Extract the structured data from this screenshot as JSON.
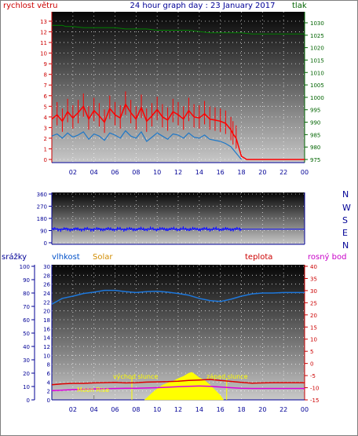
{
  "header": {
    "left_label": "rychlost větru",
    "title": "24 hour graph day : 23 January 2017",
    "right_label": "tlak"
  },
  "panel_labels": {
    "rain": "srážky",
    "humidity": "vlhkost",
    "solar": "Solar",
    "temperature": "teplota",
    "dewpoint": "rosný bod"
  },
  "compass_labels": [
    "N",
    "W",
    "S",
    "E",
    "N"
  ],
  "annotations": {
    "sunrise": "východ slunce",
    "sunset": "západ slunce",
    "moonrise": "Moon Rise"
  },
  "colors": {
    "wind_gust": "#ff0000",
    "wind_avg": "#1e78c8",
    "pressure": "#008000",
    "wind_dir": "#1414ff",
    "humidity": "#1e78dc",
    "temperature": "#dc0000",
    "dewpoint": "#dc00dc",
    "solar": "#ffff00",
    "axis_red": "#cc0000",
    "axis_green": "#006400",
    "axis_blue": "#0000c8",
    "axis_magenta": "#c800c8",
    "axis_navy": "#000096"
  },
  "chart_data": [
    {
      "type": "line",
      "name": "wind",
      "x_ticks": [
        "02",
        "04",
        "06",
        "08",
        "10",
        "12",
        "14",
        "16",
        "18",
        "20",
        "22",
        "00"
      ],
      "x_hours": [
        0,
        24
      ],
      "ylim_left": [
        0,
        13
      ],
      "y_ticks_left": [
        "0",
        "1",
        "2",
        "3",
        "4",
        "5",
        "6",
        "7",
        "8",
        "9",
        "10",
        "11",
        "12",
        "13"
      ],
      "ylim_right": [
        975,
        1030
      ],
      "y_ticks_right": [
        "975",
        "980",
        "985",
        "990",
        "995",
        "1000",
        "1005",
        "1010",
        "1015",
        "1020",
        "1025",
        "1030"
      ],
      "series": [
        {
          "key": "gust",
          "x": [
            0,
            0.5,
            1,
            1.5,
            2,
            2.5,
            3,
            3.5,
            4,
            4.5,
            5,
            5.5,
            6,
            6.5,
            7,
            7.5,
            8,
            8.5,
            9,
            9.5,
            10,
            10.5,
            11,
            11.5,
            12,
            12.5,
            13,
            13.5,
            14,
            14.5,
            15,
            15.5,
            16,
            16.5,
            17,
            17.2,
            17.5,
            18,
            18.5,
            19,
            20,
            21,
            22,
            23,
            24
          ],
          "values": [
            3.8,
            4.2,
            3.6,
            4.5,
            3.9,
            4.4,
            5.0,
            3.8,
            4.6,
            4.1,
            3.5,
            4.8,
            4.2,
            3.9,
            5.2,
            4.4,
            3.8,
            4.9,
            3.6,
            4.1,
            4.7,
            4.0,
            3.7,
            4.5,
            4.2,
            3.8,
            4.6,
            4.0,
            3.9,
            4.3,
            3.8,
            3.7,
            3.6,
            3.4,
            2.8,
            2.4,
            2.0,
            0.3,
            0,
            0,
            0,
            0,
            0,
            0,
            0
          ]
        },
        {
          "key": "avg",
          "x": [
            0,
            0.5,
            1,
            1.5,
            2,
            2.5,
            3,
            3.5,
            4,
            4.5,
            5,
            5.5,
            6,
            6.5,
            7,
            7.5,
            8,
            8.5,
            9,
            9.5,
            10,
            10.5,
            11,
            11.5,
            12,
            12.5,
            13,
            13.5,
            14,
            14.5,
            15,
            15.5,
            16,
            16.5,
            17,
            17.5,
            18
          ],
          "values": [
            2.2,
            2.4,
            2.0,
            2.5,
            2.1,
            2.3,
            2.6,
            1.9,
            2.4,
            2.2,
            1.8,
            2.5,
            2.3,
            2.0,
            2.7,
            2.2,
            2.0,
            2.6,
            1.7,
            2.1,
            2.5,
            2.2,
            1.9,
            2.4,
            2.3,
            2.0,
            2.5,
            2.1,
            2.0,
            2.3,
            1.9,
            1.8,
            1.7,
            1.5,
            1.2,
            0.6,
            0
          ]
        },
        {
          "key": "pressure",
          "x": [
            0,
            1,
            1.3,
            2,
            3,
            4,
            5,
            6,
            7,
            8,
            9,
            10,
            11,
            12,
            13,
            14,
            15,
            16,
            17,
            18,
            19,
            20,
            21,
            22,
            23,
            24
          ],
          "values": [
            1029,
            1029,
            1028.5,
            1028.5,
            1028,
            1028,
            1028,
            1028,
            1027.5,
            1027.5,
            1027.5,
            1027,
            1027,
            1027,
            1027,
            1026.5,
            1026,
            1026,
            1026,
            1026,
            1025.5,
            1025.5,
            1025.5,
            1025.5,
            1025.5,
            1025.5
          ]
        }
      ]
    },
    {
      "type": "line",
      "name": "wind_direction",
      "x_hours": [
        0,
        24
      ],
      "ylim": [
        0,
        360
      ],
      "y_ticks": [
        "0",
        "90",
        "180",
        "270",
        "360"
      ],
      "series": [
        {
          "key": "direction",
          "x": [
            0,
            18,
            19,
            20,
            21,
            22,
            23,
            24
          ],
          "values": [
            100,
            100,
            100,
            100,
            100,
            100,
            100,
            100
          ]
        }
      ]
    },
    {
      "type": "line",
      "name": "temperature_humidity_solar",
      "x_ticks": [
        "02",
        "04",
        "06",
        "08",
        "10",
        "12",
        "14",
        "16",
        "18",
        "20",
        "22",
        "00"
      ],
      "x_hours": [
        0,
        24
      ],
      "ylim_rain": [
        0,
        100
      ],
      "y_ticks_rain": [
        "0",
        "10",
        "20",
        "30",
        "40",
        "50",
        "60",
        "70",
        "80",
        "90",
        "100"
      ],
      "ylim_humidity": [
        0,
        30
      ],
      "y_ticks_humidity": [
        "0",
        "2",
        "4",
        "6",
        "8",
        "10",
        "12",
        "14",
        "16",
        "18",
        "20",
        "22",
        "24",
        "26",
        "28",
        "30"
      ],
      "ylim_temp": [
        -15,
        40
      ],
      "y_ticks_temp": [
        "-15",
        "-10",
        "-5",
        "0",
        "5",
        "10",
        "15",
        "20",
        "25",
        "30",
        "35",
        "40"
      ],
      "series": [
        {
          "key": "humidity",
          "x": [
            0,
            1,
            2,
            3,
            4,
            5,
            6,
            7,
            8,
            9,
            10,
            11,
            12,
            13,
            14,
            15,
            16,
            17,
            18,
            19,
            20,
            21,
            22,
            23,
            24
          ],
          "values": [
            21.5,
            22.8,
            23.3,
            23.9,
            24.2,
            24.6,
            24.6,
            24.3,
            24.1,
            24.3,
            24.4,
            24.2,
            23.9,
            23.5,
            22.8,
            22.3,
            22.1,
            22.6,
            23.3,
            23.8,
            24.0,
            24.0,
            24.1,
            24.1,
            24.1
          ]
        },
        {
          "key": "temperature",
          "x": [
            0,
            1,
            2,
            3,
            4,
            5,
            6,
            7,
            8,
            9,
            10,
            11,
            12,
            13,
            14,
            15,
            16,
            17,
            18,
            19,
            20,
            21,
            22,
            23,
            24
          ],
          "values": [
            -8.8,
            -8.4,
            -8.2,
            -8.2,
            -8.0,
            -7.9,
            -7.8,
            -8.0,
            -7.9,
            -7.7,
            -7.6,
            -7.5,
            -7.3,
            -7.0,
            -6.8,
            -6.6,
            -7.0,
            -7.4,
            -7.8,
            -8.1,
            -8.0,
            -7.9,
            -7.9,
            -7.9,
            -7.9
          ]
        },
        {
          "key": "dewpoint",
          "x": [
            0,
            1,
            2,
            3,
            4,
            5,
            6,
            7,
            8,
            9,
            10,
            11,
            12,
            13,
            14,
            15,
            16,
            17,
            18,
            19,
            20,
            21,
            22,
            23,
            24
          ],
          "values": [
            -11.2,
            -11.0,
            -10.8,
            -10.6,
            -10.5,
            -10.4,
            -10.3,
            -10.2,
            -10.2,
            -10.1,
            -10.0,
            -9.8,
            -9.6,
            -9.4,
            -9.3,
            -9.4,
            -9.7,
            -10.0,
            -10.2,
            -10.3,
            -10.3,
            -10.3,
            -10.3,
            -10.3,
            -10.3
          ]
        },
        {
          "key": "solar",
          "x": [
            8.8,
            9.5,
            10,
            10.5,
            11,
            11.5,
            12,
            12.5,
            13,
            13.3,
            13.6,
            14,
            14.5,
            15,
            15.5,
            16,
            16.3
          ],
          "values": [
            0,
            1.5,
            2.5,
            3.3,
            3.8,
            4.2,
            4.8,
            5.3,
            6.0,
            6.2,
            5.7,
            5.0,
            4.4,
            3.4,
            2.2,
            1.0,
            0
          ]
        }
      ],
      "markers": {
        "sunrise_hour": 7.6,
        "sunset_hour": 16.6,
        "moonrise_hour": 4.0
      }
    }
  ]
}
